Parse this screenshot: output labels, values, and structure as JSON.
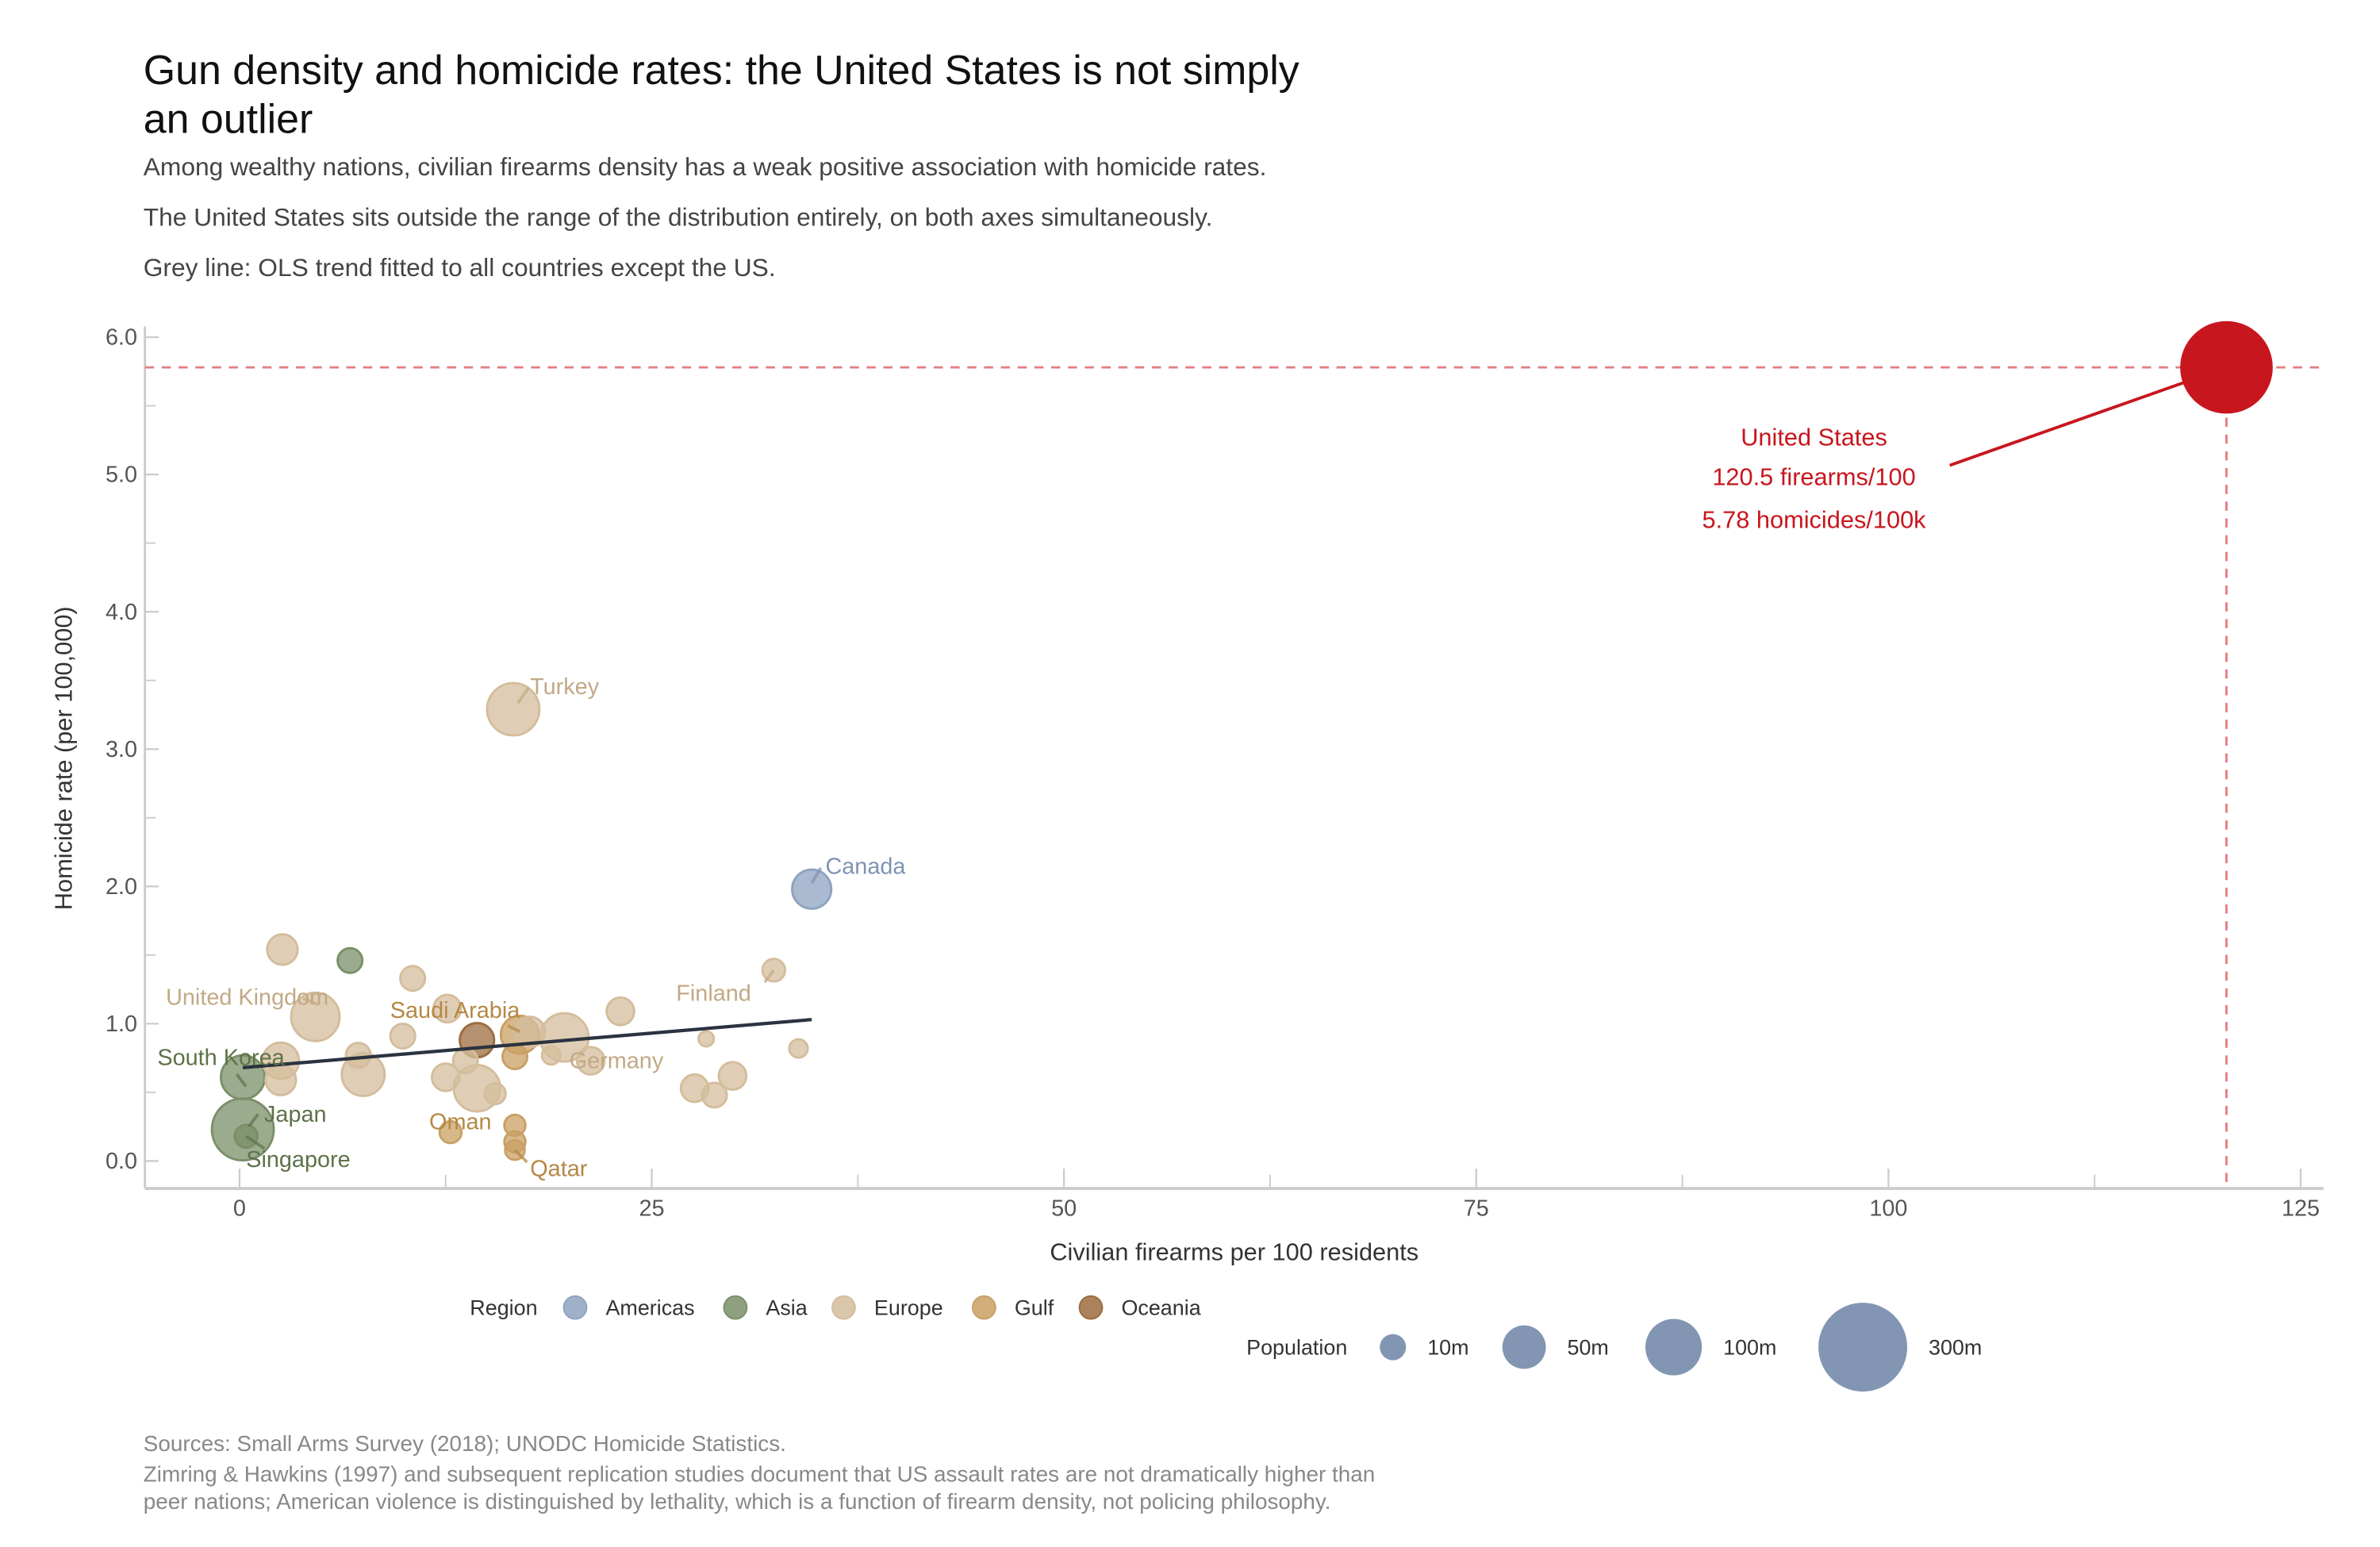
{
  "header": {
    "title_line1": "Gun density and homicide rates: the United States is not simply",
    "title_line2": "an outlier",
    "subtitles": [
      "Among wealthy nations, civilian firearms density has a weak positive association with homicide rates.",
      "The United States sits outside the range of the distribution entirely, on both axes simultaneously.",
      "Grey line: OLS trend fitted to all countries except the US."
    ]
  },
  "chart_data": {
    "type": "scatter",
    "xlabel": "Civilian firearms per 100 residents",
    "ylabel": "Homicide rate (per 100,000)",
    "xlim": [
      -5.7,
      126.5
    ],
    "ylim": [
      -0.2,
      6.1
    ],
    "x_ticks": [
      "0",
      "25",
      "50",
      "75",
      "100",
      "125"
    ],
    "x_tick_values": [
      0,
      25,
      50,
      75,
      100,
      125
    ],
    "y_ticks": [
      "0.0",
      "1.0",
      "2.0",
      "3.0",
      "4.0",
      "5.0",
      "6.0"
    ],
    "y_tick_values": [
      0,
      1,
      2,
      3,
      4,
      5,
      6
    ],
    "region_colors": {
      "Americas": "#8ea3c0",
      "Asia": "#7a8f68",
      "Europe": "#d4bd9c",
      "Gulf": "#c9a064",
      "Oceania": "#9c6c3f",
      "US": "#c8161e"
    },
    "label_colors": {
      "Americas": "#7f93b3",
      "Asia": "#5e7248",
      "Europe": "#c2a985",
      "Gulf": "#b58845",
      "Oceania": "#8a5a30"
    },
    "points": [
      {
        "name": "",
        "region": "Europe",
        "x": 2.6,
        "y": 1.54,
        "pop": 17
      },
      {
        "name": "",
        "region": "Europe",
        "x": 10.5,
        "y": 1.33,
        "pop": 8
      },
      {
        "name": "United Kingdom",
        "region": "Europe",
        "x": 4.6,
        "y": 1.05,
        "pop": 67
      },
      {
        "name": "",
        "region": "Europe",
        "x": 2.5,
        "y": 0.73,
        "pop": 30
      },
      {
        "name": "",
        "region": "Europe",
        "x": 2.5,
        "y": 0.59,
        "pop": 17
      },
      {
        "name": "",
        "region": "Europe",
        "x": 7.2,
        "y": 0.77,
        "pop": 8
      },
      {
        "name": "",
        "region": "Europe",
        "x": 7.5,
        "y": 0.63,
        "pop": 48
      },
      {
        "name": "",
        "region": "Europe",
        "x": 9.9,
        "y": 0.91,
        "pop": 8
      },
      {
        "name": "",
        "region": "Europe",
        "x": 12.6,
        "y": 1.11,
        "pop": 12
      },
      {
        "name": "",
        "region": "Europe",
        "x": 12.5,
        "y": 0.61,
        "pop": 12
      },
      {
        "name": "",
        "region": "Europe",
        "x": 13.7,
        "y": 0.73,
        "pop": 8
      },
      {
        "name": "",
        "region": "Europe",
        "x": 14.4,
        "y": 0.53,
        "pop": 60
      },
      {
        "name": "",
        "region": "Europe",
        "x": 15.5,
        "y": 0.49,
        "pop": 4
      },
      {
        "name": "Turkey",
        "region": "Europe",
        "x": 16.6,
        "y": 3.29,
        "pop": 82
      },
      {
        "name": "",
        "region": "Europe",
        "x": 17.6,
        "y": 0.94,
        "pop": 17
      },
      {
        "name": "",
        "region": "Europe",
        "x": 19.7,
        "y": 0.9,
        "pop": 67
      },
      {
        "name": "",
        "region": "Europe",
        "x": 18.9,
        "y": 0.77,
        "pop": 2
      },
      {
        "name": "Germany",
        "region": "Europe",
        "x": 21.3,
        "y": 0.73,
        "pop": 12
      },
      {
        "name": "",
        "region": "Europe",
        "x": 23.1,
        "y": 1.09,
        "pop": 12
      },
      {
        "name": "",
        "region": "Europe",
        "x": 27.6,
        "y": 0.53,
        "pop": 12
      },
      {
        "name": "",
        "region": "Europe",
        "x": 28.8,
        "y": 0.48,
        "pop": 8
      },
      {
        "name": "",
        "region": "Europe",
        "x": 28.3,
        "y": 0.89,
        "pop": 0.5
      },
      {
        "name": "",
        "region": "Europe",
        "x": 29.9,
        "y": 0.62,
        "pop": 12
      },
      {
        "name": "Finland",
        "region": "Europe",
        "x": 32.4,
        "y": 1.39,
        "pop": 5.5
      },
      {
        "name": "",
        "region": "Europe",
        "x": 33.9,
        "y": 0.82,
        "pop": 2
      },
      {
        "name": "Canada",
        "region": "Americas",
        "x": 34.7,
        "y": 1.98,
        "pop": 37
      },
      {
        "name": "",
        "region": "Asia",
        "x": 6.7,
        "y": 1.46,
        "pop": 8
      },
      {
        "name": "South Korea",
        "region": "Asia",
        "x": 0.2,
        "y": 0.61,
        "pop": 51
      },
      {
        "name": "Japan",
        "region": "Asia",
        "x": 0.2,
        "y": 0.23,
        "pop": 126
      },
      {
        "name": "Singapore",
        "region": "Asia",
        "x": 0.4,
        "y": 0.18,
        "pop": 5.7
      },
      {
        "name": "Saudi Arabia",
        "region": "Gulf",
        "x": 17.0,
        "y": 0.92,
        "pop": 34
      },
      {
        "name": "",
        "region": "Gulf",
        "x": 16.7,
        "y": 0.76,
        "pop": 8
      },
      {
        "name": "Oman",
        "region": "Gulf",
        "x": 12.8,
        "y": 0.21,
        "pop": 4.8
      },
      {
        "name": "",
        "region": "Gulf",
        "x": 16.7,
        "y": 0.26,
        "pop": 4
      },
      {
        "name": "",
        "region": "Gulf",
        "x": 16.7,
        "y": 0.14,
        "pop": 4
      },
      {
        "name": "Qatar",
        "region": "Gulf",
        "x": 16.7,
        "y": 0.08,
        "pop": 2.8
      },
      {
        "name": "",
        "region": "Oceania",
        "x": 14.4,
        "y": 0.88,
        "pop": 25
      }
    ],
    "us_point": {
      "name": "United States",
      "x": 120.5,
      "y": 5.78,
      "pop": 330
    },
    "us_annotation": [
      "United States",
      "120.5 firearms/100",
      "5.78 homicides/100k"
    ],
    "trend_line": {
      "x": [
        0.2,
        34.7
      ],
      "y": [
        0.68,
        1.03
      ]
    },
    "legend": {
      "region_title": "Region",
      "regions": [
        "Americas",
        "Asia",
        "Europe",
        "Gulf",
        "Oceania"
      ],
      "size_title": "Population",
      "sizes": [
        {
          "label": "10m",
          "pop": 10
        },
        {
          "label": "50m",
          "pop": 50
        },
        {
          "label": "100m",
          "pop": 100
        },
        {
          "label": "300m",
          "pop": 300
        }
      ],
      "size_color": "#6c84a6"
    }
  },
  "footer": {
    "lines": [
      "Sources: Small Arms Survey (2018); UNODC Homicide Statistics.",
      "Zimring & Hawkins (1997) and subsequent replication studies document that US assault rates are not dramatically higher than",
      "peer nations; American violence is distinguished by lethality, which is a function of firearm density, not policing philosophy."
    ]
  }
}
